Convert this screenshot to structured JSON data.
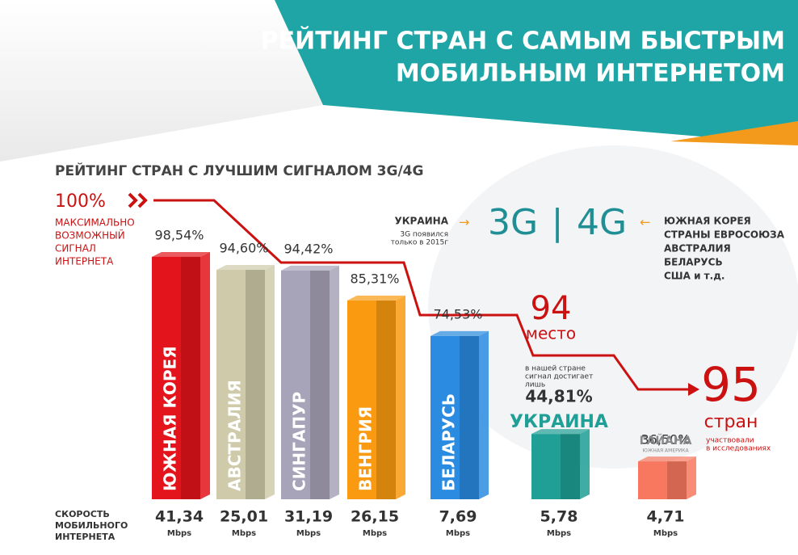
{
  "header": {
    "title_lines": [
      "РЕЙТИНГ СТРАН С САМЫМ БЫСТРЫМ",
      "МОБИЛЬНЫМ ИНТЕРНЕТОМ"
    ]
  },
  "chart_data": {
    "type": "bar",
    "title": "РЕЙТИНГ СТРАН С ЛУЧШИМ СИГНАЛОМ 3G/4G",
    "categories": [
      "ЮЖНАЯ КОРЕЯ",
      "АВСТРАЛИЯ",
      "СИНГАПУР",
      "ВЕНГРИЯ",
      "БЕЛАРУСЬ",
      "УКРАИНА",
      "ГАЙАНА"
    ],
    "values": [
      98.54,
      94.6,
      94.42,
      85.31,
      74.53,
      44.81,
      36.5
    ],
    "value_labels": [
      "98,54%",
      "94,60%",
      "94,42%",
      "85,31%",
      "74,53%",
      "44,81%",
      "36,50%"
    ],
    "colors": [
      "#e3141b",
      "#cfcbaa",
      "#a7a3b8",
      "#f99a10",
      "#2a8be0",
      "#1f9f95",
      "#f7785f"
    ],
    "category_notes": [
      null,
      null,
      null,
      null,
      null,
      null,
      "ЮЖНАЯ АМЕРИКА"
    ],
    "speed_title": "СКОРОСТЬ МОБИЛЬНОГО ИНТЕРНЕТА",
    "speeds": [
      "41,34",
      "25,01",
      "31,19",
      "26,15",
      "7,69",
      "5,78",
      "4,71"
    ],
    "speed_unit": "Mbps"
  },
  "notes": {
    "max_value": "100%",
    "max_text": [
      "МАКСИМАЛЬНО",
      "ВОЗМОЖНЫЙ",
      "СИГНАЛ",
      "ИНТЕРНЕТА"
    ],
    "ukraine": "УКРАИНА",
    "ukraine_note": [
      "3G появился",
      "только в 2015г"
    ],
    "g3": "3G",
    "sep": "|",
    "g4": "4G",
    "countries_4g": [
      "ЮЖНАЯ КОРЕЯ",
      "СТРАНЫ ЕВРОСОЮЗА",
      "АВСТРАЛИЯ",
      "БЕЛАРУСЬ",
      "США и т.д."
    ],
    "place_num": "94",
    "place_text": "место",
    "signal_note": [
      "в нашей стране",
      "сигнал достигает",
      "лишь"
    ],
    "total_num": "95",
    "total_text": "стран",
    "total_note": [
      "участвовали",
      "в исследованиях"
    ]
  }
}
